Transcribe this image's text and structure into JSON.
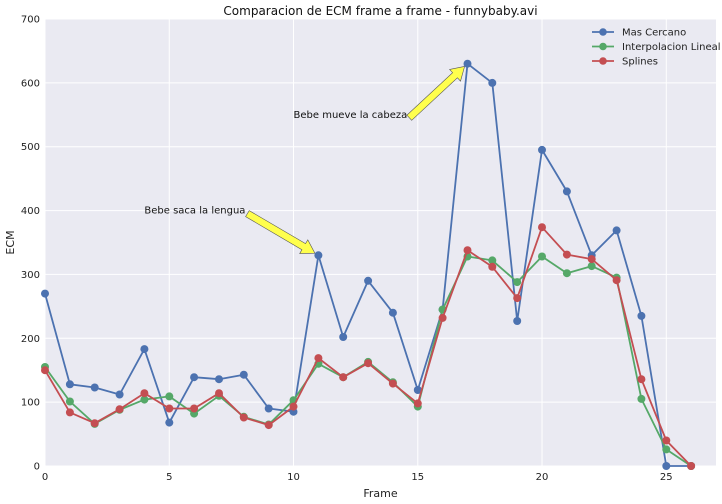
{
  "chart_data": {
    "type": "line",
    "title": "Comparacion de ECM frame a frame - funnybaby.avi",
    "xlabel": "Frame",
    "ylabel": "ECM",
    "xlim": [
      0,
      27
    ],
    "ylim": [
      0,
      700
    ],
    "xticks": [
      0,
      5,
      10,
      15,
      20,
      25
    ],
    "yticks": [
      0,
      100,
      200,
      300,
      400,
      500,
      600,
      700
    ],
    "grid": true,
    "legend_position": "top-right",
    "x": [
      0,
      1,
      2,
      3,
      4,
      5,
      6,
      7,
      8,
      9,
      10,
      11,
      12,
      13,
      14,
      15,
      16,
      17,
      18,
      19,
      20,
      21,
      22,
      23,
      24,
      25,
      26
    ],
    "series": [
      {
        "name": "Mas Cercano",
        "color": "#4c72b0",
        "values": [
          270,
          128,
          123,
          112,
          183,
          68,
          139,
          136,
          143,
          90,
          85,
          330,
          202,
          290,
          240,
          119,
          245,
          630,
          600,
          227,
          495,
          430,
          330,
          369,
          235,
          0,
          0
        ]
      },
      {
        "name": "Interpolacion Lineal",
        "color": "#55a868",
        "values": [
          155,
          101,
          66,
          88,
          104,
          109,
          82,
          110,
          77,
          65,
          103,
          160,
          139,
          163,
          131,
          93,
          245,
          328,
          322,
          288,
          328,
          302,
          313,
          295,
          105,
          26,
          0
        ]
      },
      {
        "name": "Splines",
        "color": "#c44e52",
        "values": [
          150,
          84,
          67,
          89,
          114,
          90,
          90,
          114,
          76,
          64,
          93,
          169,
          139,
          161,
          129,
          98,
          232,
          338,
          312,
          263,
          374,
          331,
          324,
          291,
          136,
          40,
          0
        ]
      }
    ],
    "annotations": [
      {
        "text": "Bebe saca la lengua",
        "xy": [
          11,
          330
        ],
        "xytext": [
          4,
          400
        ]
      },
      {
        "text": "Bebe mueve la cabeza",
        "xy": [
          17,
          630
        ],
        "xytext": [
          10,
          550
        ]
      }
    ]
  }
}
